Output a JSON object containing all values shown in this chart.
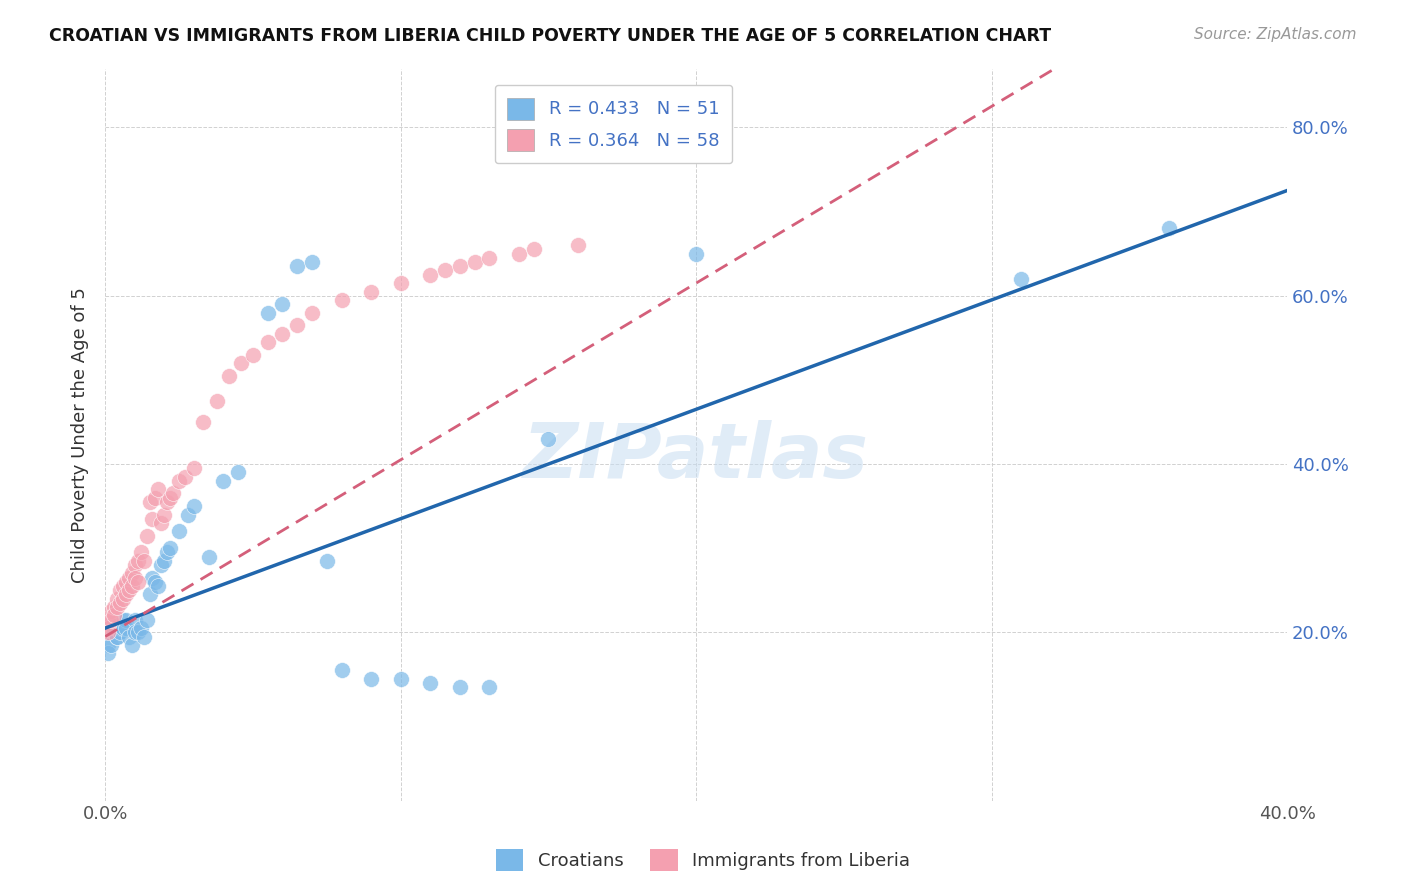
{
  "title": "CROATIAN VS IMMIGRANTS FROM LIBERIA CHILD POVERTY UNDER THE AGE OF 5 CORRELATION CHART",
  "source": "Source: ZipAtlas.com",
  "ylabel": "Child Poverty Under the Age of 5",
  "xlim": [
    0.0,
    0.4
  ],
  "ylim": [
    0.0,
    0.87
  ],
  "xticks": [
    0.0,
    0.1,
    0.2,
    0.3,
    0.4
  ],
  "xtick_labels": [
    "0.0%",
    "",
    "",
    "",
    "40.0%"
  ],
  "yticks_right": [
    0.2,
    0.4,
    0.6,
    0.8
  ],
  "ytick_labels_right": [
    "20.0%",
    "40.0%",
    "60.0%",
    "80.0%"
  ],
  "blue_color": "#7ab8e8",
  "pink_color": "#f4a0b0",
  "blue_line_color": "#2166ac",
  "pink_line_color": "#d45f7a",
  "R_blue": 0.433,
  "N_blue": 51,
  "R_pink": 0.364,
  "N_pink": 58,
  "legend_labels": [
    "Croatians",
    "Immigrants from Liberia"
  ],
  "watermark": "ZIPatlas",
  "blue_scatter_x": [
    0.001,
    0.001,
    0.002,
    0.002,
    0.003,
    0.003,
    0.004,
    0.004,
    0.005,
    0.005,
    0.006,
    0.006,
    0.007,
    0.007,
    0.008,
    0.009,
    0.01,
    0.01,
    0.011,
    0.012,
    0.013,
    0.014,
    0.015,
    0.016,
    0.017,
    0.018,
    0.019,
    0.02,
    0.021,
    0.022,
    0.025,
    0.028,
    0.03,
    0.035,
    0.04,
    0.045,
    0.055,
    0.06,
    0.065,
    0.07,
    0.075,
    0.08,
    0.09,
    0.1,
    0.11,
    0.12,
    0.13,
    0.15,
    0.2,
    0.31,
    0.36
  ],
  "blue_scatter_y": [
    0.185,
    0.175,
    0.21,
    0.185,
    0.205,
    0.2,
    0.195,
    0.195,
    0.205,
    0.2,
    0.215,
    0.205,
    0.215,
    0.205,
    0.195,
    0.185,
    0.215,
    0.2,
    0.2,
    0.205,
    0.195,
    0.215,
    0.245,
    0.265,
    0.26,
    0.255,
    0.28,
    0.285,
    0.295,
    0.3,
    0.32,
    0.34,
    0.35,
    0.29,
    0.38,
    0.39,
    0.58,
    0.59,
    0.635,
    0.64,
    0.285,
    0.155,
    0.145,
    0.145,
    0.14,
    0.135,
    0.135,
    0.43,
    0.65,
    0.62,
    0.68
  ],
  "pink_scatter_x": [
    0.001,
    0.001,
    0.001,
    0.002,
    0.002,
    0.003,
    0.003,
    0.004,
    0.004,
    0.005,
    0.005,
    0.006,
    0.006,
    0.007,
    0.007,
    0.008,
    0.008,
    0.009,
    0.009,
    0.01,
    0.01,
    0.011,
    0.011,
    0.012,
    0.013,
    0.014,
    0.015,
    0.016,
    0.017,
    0.018,
    0.019,
    0.02,
    0.021,
    0.022,
    0.023,
    0.025,
    0.027,
    0.03,
    0.033,
    0.038,
    0.042,
    0.046,
    0.05,
    0.055,
    0.06,
    0.065,
    0.07,
    0.08,
    0.09,
    0.1,
    0.11,
    0.115,
    0.12,
    0.125,
    0.13,
    0.14,
    0.145,
    0.16
  ],
  "pink_scatter_y": [
    0.215,
    0.205,
    0.2,
    0.225,
    0.215,
    0.23,
    0.22,
    0.24,
    0.23,
    0.25,
    0.235,
    0.255,
    0.24,
    0.26,
    0.245,
    0.265,
    0.25,
    0.27,
    0.255,
    0.28,
    0.265,
    0.285,
    0.26,
    0.295,
    0.285,
    0.315,
    0.355,
    0.335,
    0.36,
    0.37,
    0.33,
    0.34,
    0.355,
    0.36,
    0.365,
    0.38,
    0.385,
    0.395,
    0.45,
    0.475,
    0.505,
    0.52,
    0.53,
    0.545,
    0.555,
    0.565,
    0.58,
    0.595,
    0.605,
    0.615,
    0.625,
    0.63,
    0.635,
    0.64,
    0.645,
    0.65,
    0.655,
    0.66
  ]
}
